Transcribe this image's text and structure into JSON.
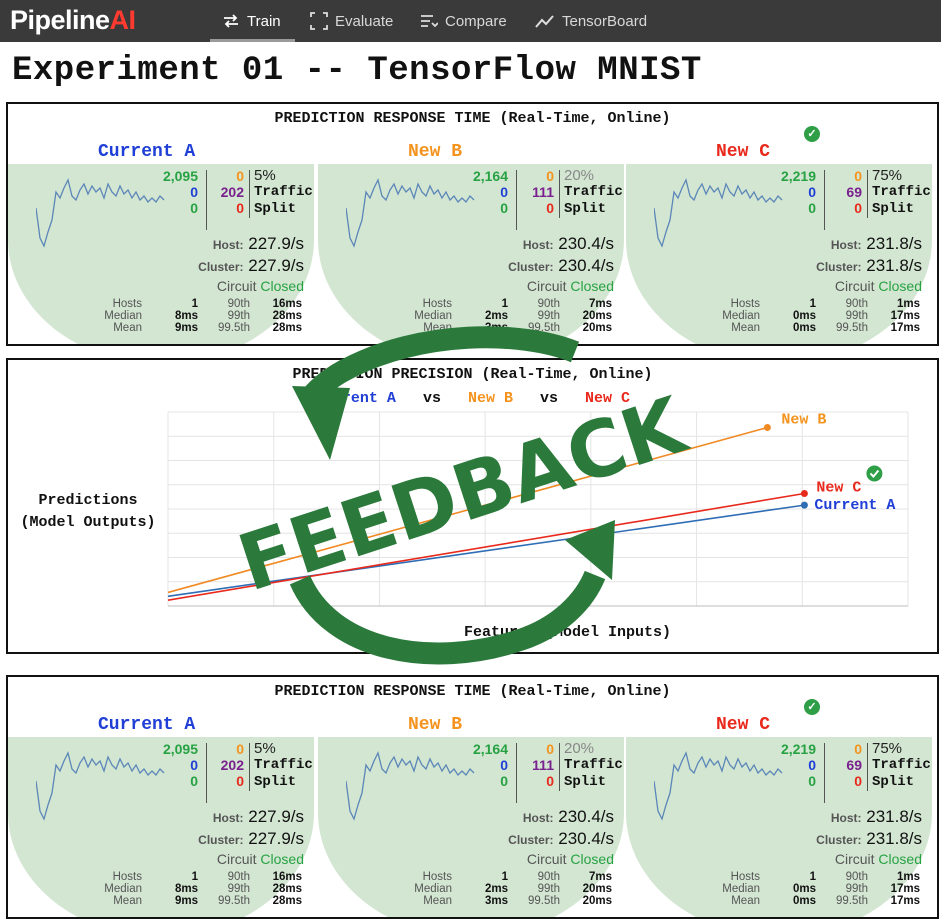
{
  "app": {
    "logo_main": "Pipeline",
    "logo_accent": "AI"
  },
  "nav": [
    {
      "label": "Train",
      "icon": "shuffle-icon",
      "active": true
    },
    {
      "label": "Evaluate",
      "icon": "frame-icon",
      "active": false
    },
    {
      "label": "Compare",
      "icon": "compare-icon",
      "active": false
    },
    {
      "label": "TensorBoard",
      "icon": "chart-line-icon",
      "active": false
    }
  ],
  "page_title": "Experiment 01 -- TensorFlow MNIST",
  "response_panel": {
    "title": "PREDICTION RESPONSE TIME (Real-Time, Online)",
    "traffic_label": "Traffic",
    "split_label": "Split",
    "host_label": "Host:",
    "cluster_label": "Cluster:",
    "circuit_label": "Circuit",
    "stat_labels": [
      "Hosts",
      "Median",
      "Mean"
    ],
    "pct_labels": [
      "90th",
      "99th",
      "99.5th"
    ],
    "models": [
      {
        "name": "Current A",
        "color": "#1f3fd6",
        "success": "2,095",
        "zero1": "0",
        "zero2": "0",
        "orange": "0",
        "purple": "202",
        "red": "0",
        "traffic_pct": "5%",
        "host_rate": "227.9/s",
        "cluster_rate": "227.9/s",
        "circuit": "Closed",
        "hosts": "1",
        "median": "8ms",
        "mean": "9ms",
        "p90": "16ms",
        "p99": "28ms",
        "p995": "28ms",
        "check": false
      },
      {
        "name": "New B",
        "color": "#f4931e",
        "success": "2,164",
        "zero1": "0",
        "zero2": "0",
        "orange": "0",
        "purple": "111",
        "red": "0",
        "traffic_pct": "20%",
        "host_rate": "230.4/s",
        "cluster_rate": "230.4/s",
        "circuit": "Closed",
        "hosts": "1",
        "median": "2ms",
        "mean": "3ms",
        "p90": "7ms",
        "p99": "20ms",
        "p995": "20ms",
        "check": false
      },
      {
        "name": "New C",
        "color": "#e8291c",
        "success": "2,219",
        "zero1": "0",
        "zero2": "0",
        "orange": "0",
        "purple": "69",
        "red": "0",
        "traffic_pct": "75%",
        "host_rate": "231.8/s",
        "cluster_rate": "231.8/s",
        "circuit": "Closed",
        "hosts": "1",
        "median": "0ms",
        "mean": "0ms",
        "p90": "1ms",
        "p99": "17ms",
        "p995": "17ms",
        "check": true
      }
    ]
  },
  "precision_panel": {
    "title": "PREDICTION PRECISION (Real-Time, Online)",
    "subtitle_vs": "vs",
    "ylabel_line1": "Predictions",
    "ylabel_line2": "(Model Outputs)",
    "xlabel": "Features (Model Inputs)"
  },
  "feedback_text": "FEEDBACK",
  "chart_data": {
    "type": "line",
    "title": "PREDICTION PRECISION (Real-Time, Online)",
    "xlabel": "Features (Model Inputs)",
    "ylabel": "Predictions (Model Outputs)",
    "xlim": [
      0,
      1
    ],
    "ylim": [
      0,
      1
    ],
    "grid": true,
    "series": [
      {
        "name": "Current A",
        "color": "#2f6db5",
        "x": [
          0,
          0.86
        ],
        "y": [
          0.05,
          0.52
        ]
      },
      {
        "name": "New B",
        "color": "#f08a24",
        "x": [
          0,
          0.81
        ],
        "y": [
          0.07,
          0.92
        ]
      },
      {
        "name": "New C",
        "color": "#e8291c",
        "x": [
          0,
          0.86
        ],
        "y": [
          0.03,
          0.58
        ]
      }
    ]
  }
}
